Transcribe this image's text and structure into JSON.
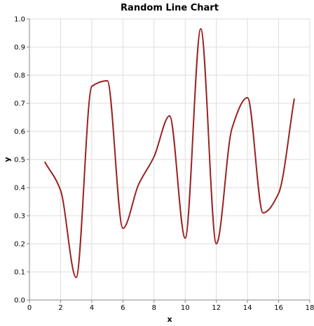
{
  "chart_data": {
    "type": "line",
    "title": "Random Line Chart",
    "xlabel": "x",
    "ylabel": "y",
    "xlim": [
      0,
      18
    ],
    "ylim": [
      0,
      1.0
    ],
    "xticks": [
      0,
      2,
      4,
      6,
      8,
      10,
      12,
      14,
      16,
      18
    ],
    "yticks": [
      0.0,
      0.1,
      0.2,
      0.3,
      0.4,
      0.5,
      0.6,
      0.7,
      0.8,
      0.9,
      1.0
    ],
    "grid": true,
    "interpolation": "smooth",
    "series": [
      {
        "x": [
          1,
          2,
          3,
          4,
          5,
          6,
          7,
          8,
          9,
          10,
          11,
          12,
          13,
          14,
          15,
          16,
          17
        ],
        "y": [
          0.49,
          0.39,
          0.08,
          0.76,
          0.78,
          0.255,
          0.41,
          0.51,
          0.655,
          0.22,
          0.965,
          0.2,
          0.61,
          0.72,
          0.31,
          0.38,
          0.715
        ],
        "color": "#992222"
      }
    ]
  }
}
